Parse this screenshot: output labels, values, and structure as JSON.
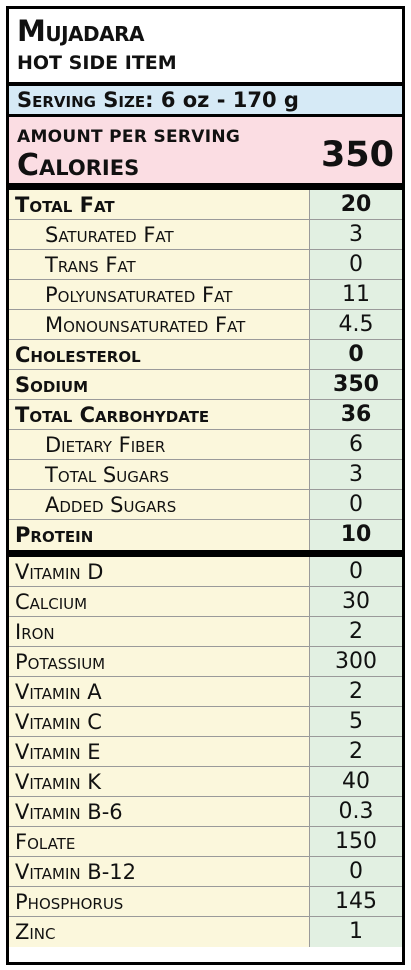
{
  "title": "Mujadara",
  "subtitle": "HOT SIDE ITEM",
  "serving": {
    "label": "Serving Size:",
    "amount": "6 oz",
    "separator": "-",
    "grams": "170 g"
  },
  "calories": {
    "amount_label": "AMOUNT PER SERVING",
    "label": "Calories",
    "value": "350"
  },
  "nutrients": [
    {
      "name": "Total Fat",
      "value": "20",
      "bold": true,
      "indent": false
    },
    {
      "name": "Saturated Fat",
      "value": "3",
      "bold": false,
      "indent": true
    },
    {
      "name": "Trans Fat",
      "value": "0",
      "bold": false,
      "indent": true
    },
    {
      "name": "Polyunsaturated Fat",
      "value": "11",
      "bold": false,
      "indent": true
    },
    {
      "name": "Monounsaturated Fat",
      "value": "4.5",
      "bold": false,
      "indent": true
    },
    {
      "name": "Cholesterol",
      "value": "0",
      "bold": true,
      "indent": false
    },
    {
      "name": "Sodium",
      "value": "350",
      "bold": true,
      "indent": false
    },
    {
      "name": "Total Carbohydate",
      "value": "36",
      "bold": true,
      "indent": false
    },
    {
      "name": "Dietary Fiber",
      "value": "6",
      "bold": false,
      "indent": true
    },
    {
      "name": "Total Sugars",
      "value": "3",
      "bold": false,
      "indent": true
    },
    {
      "name": "Added Sugars",
      "value": "0",
      "bold": false,
      "indent": true
    },
    {
      "name": "Protein",
      "value": "10",
      "bold": true,
      "indent": false
    }
  ],
  "micros": [
    {
      "name": "Vitamin D",
      "value": "0"
    },
    {
      "name": "Calcium",
      "value": "30"
    },
    {
      "name": "Iron",
      "value": "2"
    },
    {
      "name": "Potassium",
      "value": "300"
    },
    {
      "name": "Vitamin A",
      "value": "2"
    },
    {
      "name": "Vitamin C",
      "value": "5"
    },
    {
      "name": "Vitamin E",
      "value": "2"
    },
    {
      "name": "Vitamin K",
      "value": "40"
    },
    {
      "name": "Vitamin B-6",
      "value": "0.3"
    },
    {
      "name": "Folate",
      "value": "150"
    },
    {
      "name": "Vitamin B-12",
      "value": "0"
    },
    {
      "name": "Phosphorus",
      "value": "145"
    },
    {
      "name": "Zinc",
      "value": "1"
    }
  ],
  "colors": {
    "serving_bg": "#d6eaf6",
    "calories_bg": "#fbdde3",
    "row_bg": "#fbf7dc",
    "value_bg": "#e2f0e2"
  }
}
